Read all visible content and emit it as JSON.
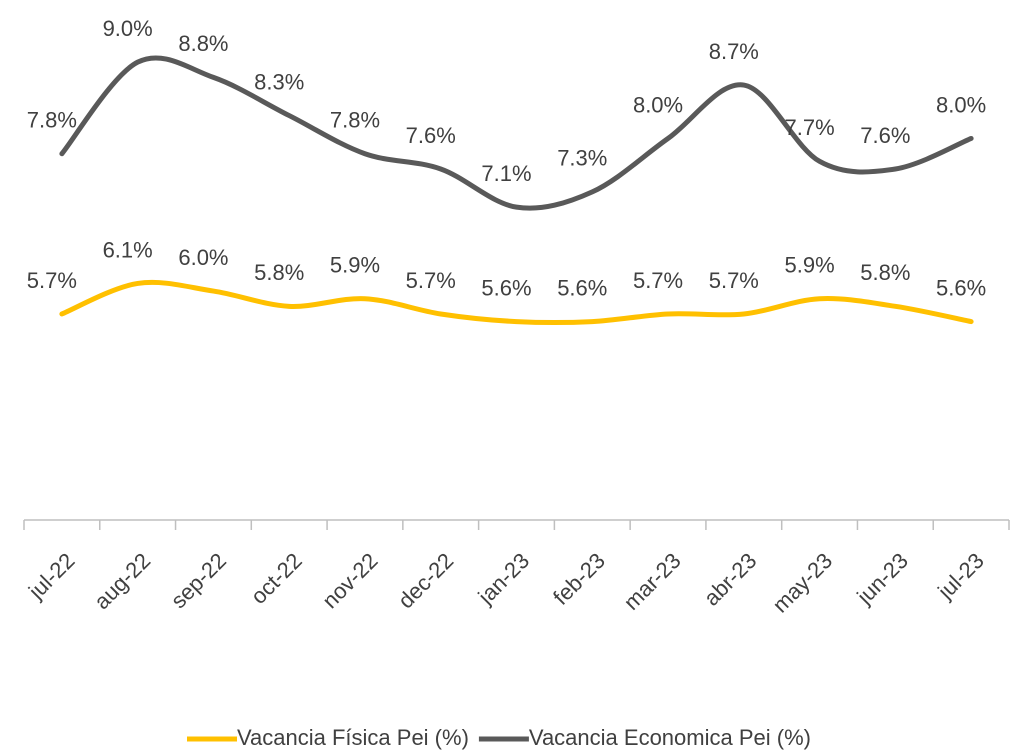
{
  "chart_data": {
    "type": "line",
    "categories": [
      "jul-22",
      "aug-22",
      "sep-22",
      "oct-22",
      "nov-22",
      "dec-22",
      "jan-23",
      "feb-23",
      "mar-23",
      "abr-23",
      "may-23",
      "jun-23",
      "jul-23"
    ],
    "series": [
      {
        "name": "Vacancia Física Pei (%)",
        "color": "#FFC000",
        "values": [
          5.7,
          6.1,
          6.0,
          5.8,
          5.9,
          5.7,
          5.6,
          5.6,
          5.7,
          5.7,
          5.9,
          5.8,
          5.6
        ],
        "value_labels": [
          "5.7%",
          "6.1%",
          "6.0%",
          "5.8%",
          "5.9%",
          "5.7%",
          "5.6%",
          "5.6%",
          "5.7%",
          "5.7%",
          "5.9%",
          "5.8%",
          "5.6%"
        ]
      },
      {
        "name": "Vacancia Economica Pei (%)",
        "color": "#595959",
        "values": [
          7.8,
          9.0,
          8.8,
          8.3,
          7.8,
          7.6,
          7.1,
          7.3,
          8.0,
          8.7,
          7.7,
          7.6,
          8.0
        ],
        "value_labels": [
          "7.8%",
          "9.0%",
          "8.8%",
          "8.3%",
          "7.8%",
          "7.6%",
          "7.1%",
          "7.3%",
          "8.0%",
          "8.7%",
          "7.7%",
          "7.6%",
          "8.0%"
        ]
      }
    ],
    "ylim": [
      3,
      9.5
    ]
  }
}
